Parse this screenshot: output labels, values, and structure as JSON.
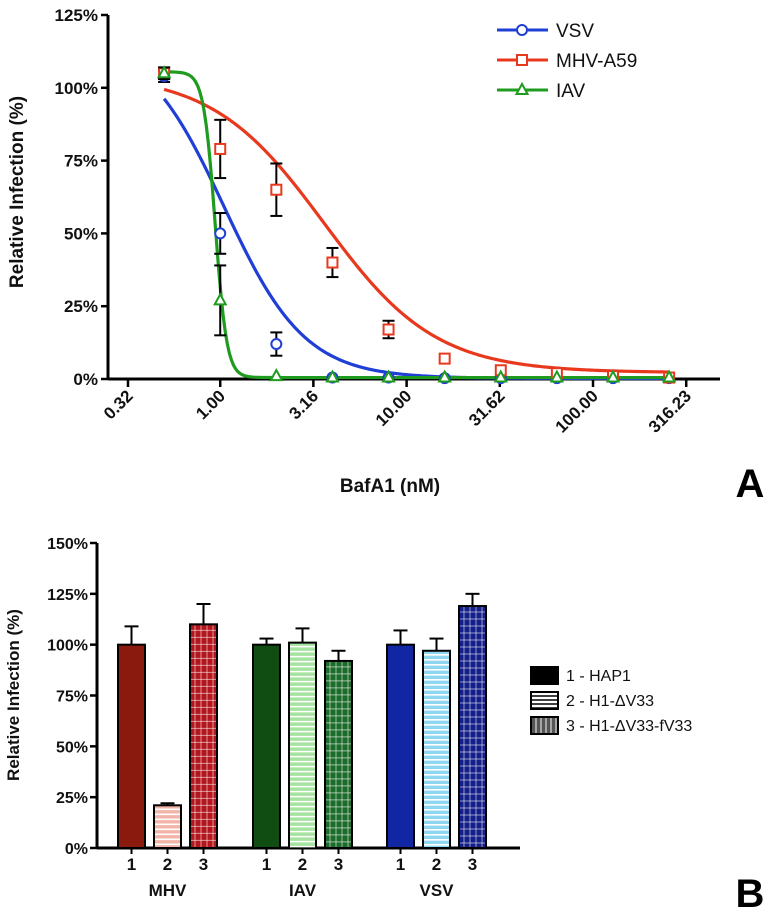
{
  "chart_data": [
    {
      "type": "line",
      "panel_label": "A",
      "xlabel": "BafA1 (nM)",
      "ylabel": "Relative Infection (%)",
      "x_scale": "log10",
      "xlim": [
        0.25,
        480
      ],
      "ylim": [
        0,
        125
      ],
      "x_ticks": [
        0.32,
        1.0,
        3.16,
        10.0,
        31.62,
        100.0,
        316.23
      ],
      "x_tick_labels": [
        "0.32",
        "1.00",
        "3.16",
        "10.00",
        "31.62",
        "100.00",
        "316.23"
      ],
      "y_ticks": [
        0,
        25,
        50,
        75,
        100,
        125
      ],
      "y_tick_labels": [
        "0%",
        "25%",
        "50%",
        "75%",
        "100%",
        "125%"
      ],
      "legend_position": "top-right",
      "series": [
        {
          "name": "VSV",
          "color": "#1f3fd6",
          "marker": "circle",
          "x": [
            0.5,
            1.0,
            2.0,
            4.0,
            8.0,
            16.0,
            32.0,
            64.0,
            128.0,
            256.0
          ],
          "y": [
            104,
            50,
            12,
            0.5,
            0.5,
            0.3,
            0.3,
            0.3,
            0.3,
            0.3
          ],
          "err": [
            2,
            7,
            4,
            0.5,
            0.5,
            0.3,
            0.3,
            0.3,
            0.3,
            0.3
          ],
          "fit": {
            "top": 118,
            "bottom": 0.2,
            "ic50": 1.05,
            "hill": 2.0
          }
        },
        {
          "name": "MHV-A59",
          "color": "#e8391e",
          "marker": "square",
          "x": [
            0.5,
            1.0,
            2.0,
            4.0,
            8.0,
            16.0,
            32.0,
            64.0,
            128.0,
            256.0
          ],
          "y": [
            105,
            79,
            65,
            40,
            17,
            7,
            3,
            2,
            1,
            0.5
          ],
          "err": [
            2,
            10,
            9,
            5,
            3,
            1,
            0.5,
            0.5,
            0.3,
            0.3
          ],
          "fit": {
            "top": 105,
            "bottom": 2.2,
            "ic50": 3.6,
            "hill": 1.45
          }
        },
        {
          "name": "IAV",
          "color": "#1f9c1f",
          "marker": "triangle",
          "x": [
            0.5,
            1.0,
            2.0,
            4.0,
            8.0,
            16.0,
            32.0,
            64.0,
            128.0,
            256.0
          ],
          "y": [
            105,
            27,
            1,
            0.5,
            0.5,
            0.5,
            0.5,
            0.5,
            0.5,
            0.5
          ],
          "err": [
            2,
            12,
            0.5,
            0.3,
            0.3,
            0.3,
            0.3,
            0.3,
            0.3,
            0.3
          ],
          "fit": {
            "top": 105.5,
            "bottom": 0.5,
            "ic50": 0.94,
            "hill": 14
          }
        }
      ]
    },
    {
      "type": "bar",
      "panel_label": "B",
      "ylabel": "Relative Infection (%)",
      "ylim": [
        0,
        150
      ],
      "y_ticks": [
        0,
        25,
        50,
        75,
        100,
        125,
        150
      ],
      "y_tick_labels": [
        "0%",
        "25%",
        "50%",
        "75%",
        "100%",
        "125%",
        "150%"
      ],
      "groups": [
        {
          "name": "MHV",
          "tick_labels": [
            "1",
            "2",
            "3"
          ],
          "values": [
            100,
            21,
            110
          ],
          "errors": [
            9,
            1,
            10
          ],
          "colors": [
            "#8b1a0e",
            "#f2b3a8",
            "#b3161c"
          ]
        },
        {
          "name": "IAV",
          "tick_labels": [
            "1",
            "2",
            "3"
          ],
          "values": [
            100,
            101,
            92
          ],
          "errors": [
            3,
            7,
            5
          ],
          "colors": [
            "#0f4d12",
            "#a6e3a0",
            "#1d6b2a"
          ]
        },
        {
          "name": "VSV",
          "tick_labels": [
            "1",
            "2",
            "3"
          ],
          "values": [
            100,
            97,
            119
          ],
          "errors": [
            7,
            6,
            6
          ],
          "colors": [
            "#1126a3",
            "#8fd6f0",
            "#141f8a"
          ]
        }
      ],
      "legend": [
        {
          "label": "1 - HAP1",
          "pattern": "solid"
        },
        {
          "label": "2 - H1-ΔV33",
          "pattern": "horizontal-stripes"
        },
        {
          "label": "3 - H1-ΔV33-fV33",
          "pattern": "grid"
        }
      ],
      "legend_position": "right"
    }
  ]
}
